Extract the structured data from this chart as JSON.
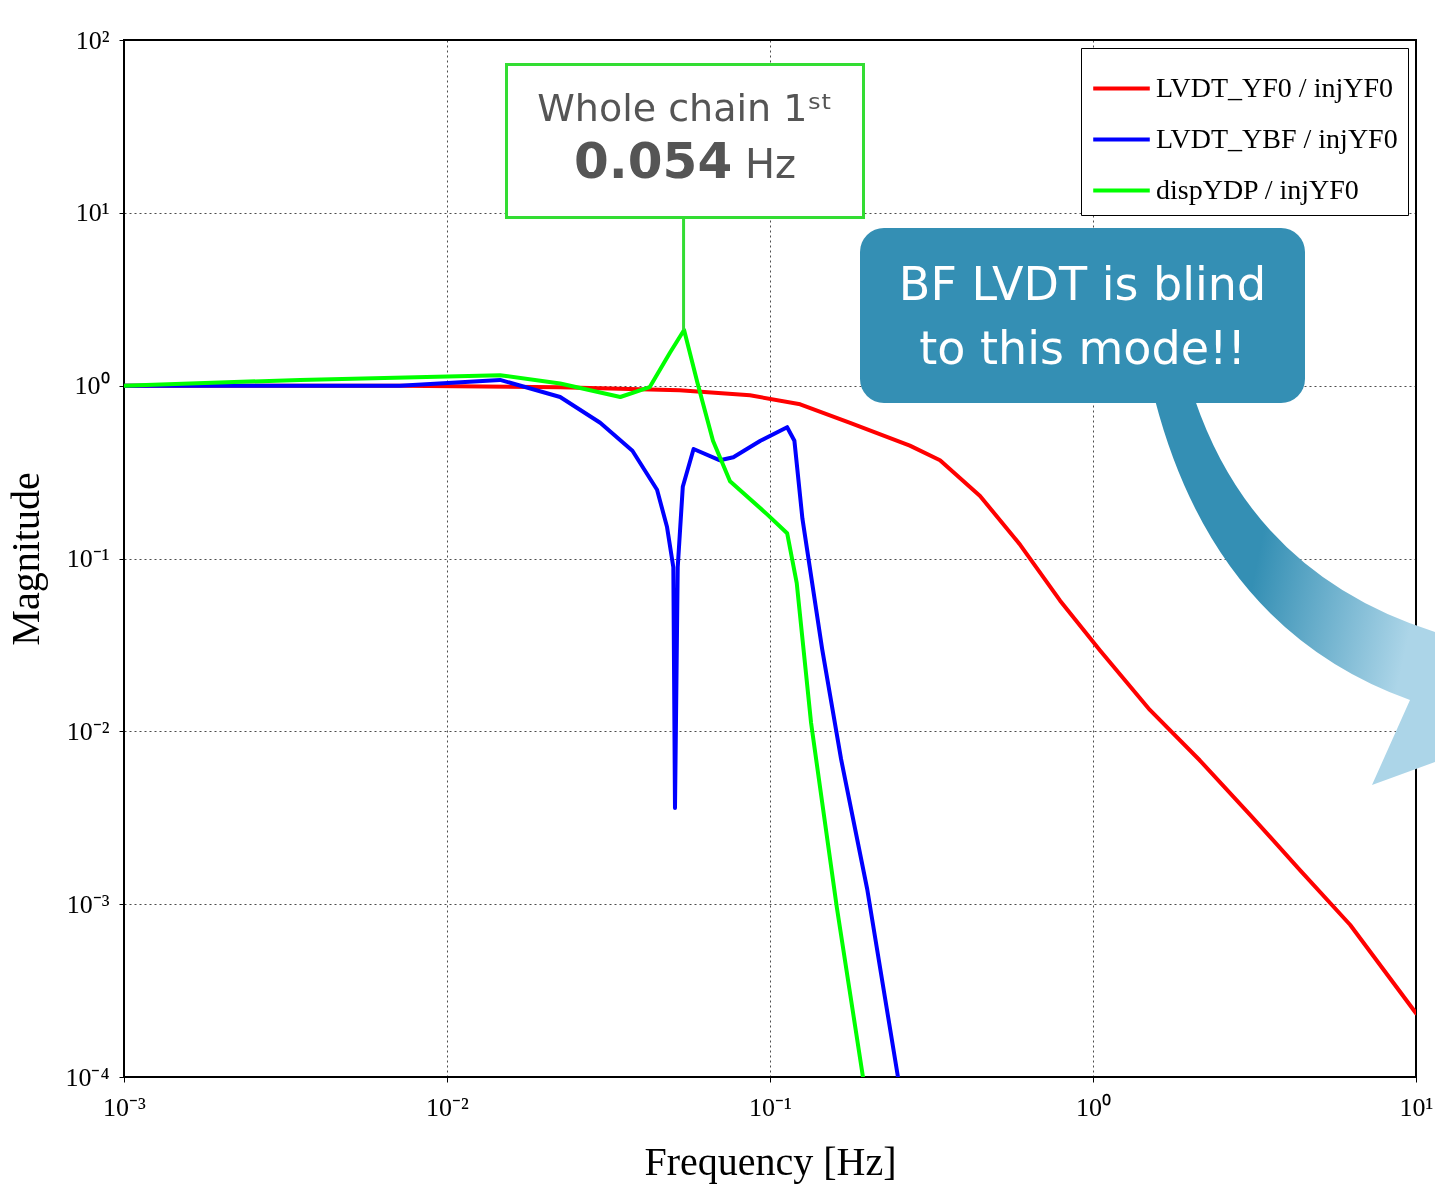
{
  "chart_data": {
    "type": "line",
    "xlabel": "Frequency [Hz]",
    "ylabel": "Magnitude",
    "log": "xy",
    "grid": true,
    "legend": "top right",
    "xlim": [
      0.001,
      10
    ],
    "ylim": [
      0.0001,
      100
    ],
    "xticks": [
      {
        "value": 0.001,
        "label": "10⁻³"
      },
      {
        "value": 0.01,
        "label": "10⁻²"
      },
      {
        "value": 0.1,
        "label": "10⁻¹"
      },
      {
        "value": 1,
        "label": "10⁰"
      },
      {
        "value": 10,
        "label": "10¹"
      }
    ],
    "yticks": [
      {
        "value": 0.0001,
        "label": "10⁻⁴"
      },
      {
        "value": 0.001,
        "label": "10⁻³"
      },
      {
        "value": 0.01,
        "label": "10⁻²"
      },
      {
        "value": 0.1,
        "label": "10⁻¹"
      },
      {
        "value": 1,
        "label": "10⁰"
      },
      {
        "value": 10,
        "label": "10¹"
      },
      {
        "value": 100,
        "label": "10²"
      }
    ],
    "series": [
      {
        "name": "LVDT_YF0 / injYF0",
        "color": "#ff0000",
        "x": [
          0.001,
          0.00714,
          0.0224,
          0.0525,
          0.0867,
          0.124,
          0.177,
          0.271,
          0.336,
          0.447,
          0.595,
          0.791,
          1.05,
          1.5,
          2.14,
          3.06,
          4.38,
          6.25,
          10
        ],
        "values": [
          1.0,
          1.0,
          0.98,
          0.94,
          0.88,
          0.78,
          0.61,
          0.45,
          0.37,
          0.23,
          0.12,
          0.057,
          0.0295,
          0.0133,
          0.0068,
          0.0033,
          0.00157,
          0.00076,
          0.000234
        ]
      },
      {
        "name": "LVDT_YBF / injYF0",
        "color": "#0000ff",
        "x": [
          0.001,
          0.00714,
          0.0146,
          0.0224,
          0.0298,
          0.0375,
          0.0447,
          0.048,
          0.0502,
          0.0508,
          0.0518,
          0.0537,
          0.058,
          0.07,
          0.077,
          0.0934,
          0.113,
          0.119,
          0.126,
          0.145,
          0.166,
          0.2,
          0.249
        ],
        "values": [
          1.0,
          1.0,
          1.08,
          0.86,
          0.61,
          0.42,
          0.25,
          0.152,
          0.089,
          0.0036,
          0.089,
          0.26,
          0.43,
          0.37,
          0.385,
          0.48,
          0.575,
          0.48,
          0.17,
          0.03,
          0.0069,
          0.00122,
          0.0001
        ]
      },
      {
        "name": "dispYDP / injYF0",
        "color": "#00ff00",
        "x": [
          0.001,
          0.00351,
          0.0146,
          0.0224,
          0.0344,
          0.0424,
          0.049,
          0.0542,
          0.0597,
          0.0666,
          0.0752,
          0.098,
          0.113,
          0.121,
          0.134,
          0.161,
          0.194
        ],
        "values": [
          1.0,
          1.08,
          1.15,
          1.03,
          0.86,
          0.98,
          1.55,
          2.1,
          1.03,
          0.48,
          0.28,
          0.18,
          0.14,
          0.072,
          0.0112,
          0.00096,
          0.0001
        ]
      }
    ],
    "annotations": [
      "Whole chain 1ˢᵗ",
      {
        "text": "0.054 Hz",
        "x": 0.054,
        "y": 2.1
      },
      "BF LVDT is blind to this mode!!"
    ]
  }
}
